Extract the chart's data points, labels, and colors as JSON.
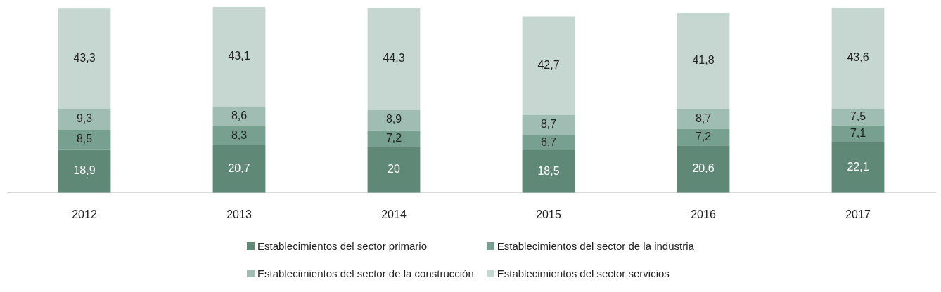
{
  "chart_data": {
    "type": "bar",
    "stacked": true,
    "categories": [
      "2012",
      "2013",
      "2014",
      "2015",
      "2016",
      "2017"
    ],
    "series": [
      {
        "name": "Establecimientos del sector primario",
        "color": "#5f8877",
        "values": [
          18.9,
          20.7,
          20,
          18.5,
          20.6,
          22.1
        ],
        "value_labels": [
          "18,9",
          "20,7",
          "20",
          "18,5",
          "20,6",
          "22,1"
        ]
      },
      {
        "name": "Establecimientos del sector de la industria",
        "color": "#77a091",
        "values": [
          8.5,
          8.3,
          7.2,
          6.7,
          7.2,
          7.1
        ],
        "value_labels": [
          "8,5",
          "8,3",
          "7,2",
          "6,7",
          "7,2",
          "7,1"
        ]
      },
      {
        "name": "Establecimientos del sector de la construcción",
        "color": "#9fbdb2",
        "values": [
          9.3,
          8.6,
          8.9,
          8.7,
          8.7,
          7.5
        ],
        "value_labels": [
          "9,3",
          "8,6",
          "8,9",
          "8,7",
          "8,7",
          "7,5"
        ]
      },
      {
        "name": "Establecimientos del sector servicios",
        "color": "#c6d7d2",
        "values": [
          43.3,
          43.1,
          44.3,
          42.7,
          41.8,
          43.6
        ],
        "value_labels": [
          "43,3",
          "43,1",
          "44,3",
          "42,7",
          "41,8",
          "43,6"
        ]
      }
    ],
    "grid": false,
    "legend": "bottom",
    "tick_labels": "x"
  }
}
